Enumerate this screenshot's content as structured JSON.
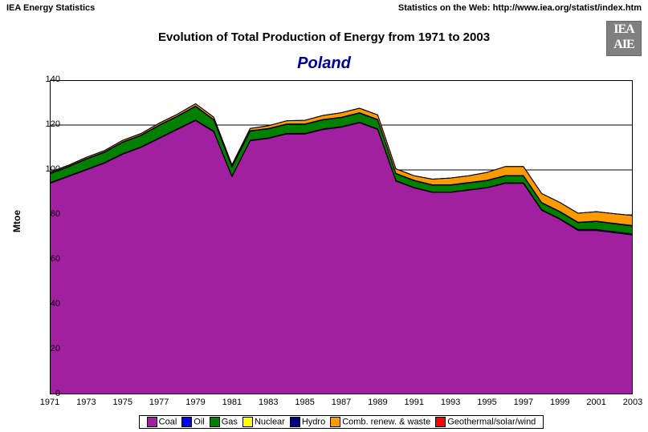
{
  "header": {
    "left": "IEA Energy Statistics",
    "right": "Statistics on the Web: http://www.iea.org/statist/index.htm"
  },
  "logo": {
    "top": "IEA",
    "bottom": "AIE"
  },
  "chart": {
    "type": "area",
    "title": "Evolution of Total Production of Energy from 1971 to 2003",
    "subtitle": "Poland",
    "subtitle_color": "#000099",
    "ylabel": "Mtoe",
    "background_color": "#ffffff",
    "grid_color": "#000000",
    "axis_color": "#000000",
    "xlim": [
      1971,
      2003
    ],
    "ylim": [
      0,
      140
    ],
    "xtick_step": 2,
    "ytick_step": 20,
    "axis_fontsize": 11,
    "title_fontsize": 15,
    "subtitle_fontsize": 20,
    "label_fontsize": 12,
    "series_order": [
      "coal",
      "oil",
      "gas",
      "nuclear",
      "hydro",
      "comb_renew",
      "geo_solar_wind"
    ],
    "series": {
      "coal": {
        "label": "Coal",
        "color": "#a020a0"
      },
      "oil": {
        "label": "Oil",
        "color": "#0000ff"
      },
      "gas": {
        "label": "Gas",
        "color": "#008000"
      },
      "nuclear": {
        "label": "Nuclear",
        "color": "#ffff00"
      },
      "hydro": {
        "label": "Hydro",
        "color": "#000080"
      },
      "comb_renew": {
        "label": "Comb. renew. & waste",
        "color": "#ff9900"
      },
      "geo_solar_wind": {
        "label": "Geothermal/solar/wind",
        "color": "#ff0000"
      }
    },
    "years": [
      1971,
      1972,
      1973,
      1974,
      1975,
      1976,
      1977,
      1978,
      1979,
      1980,
      1981,
      1982,
      1983,
      1984,
      1985,
      1986,
      1987,
      1988,
      1989,
      1990,
      1991,
      1992,
      1993,
      1994,
      1995,
      1996,
      1997,
      1998,
      1999,
      2000,
      2001,
      2002,
      2003
    ],
    "values": {
      "coal": [
        94,
        97,
        100,
        103,
        107,
        110,
        114,
        118,
        122,
        117,
        97,
        113,
        114,
        116,
        116,
        118,
        119,
        121,
        118,
        95,
        92,
        90,
        90,
        91,
        92,
        94,
        94,
        82,
        78,
        73,
        73,
        72,
        71
      ],
      "oil": [
        0.3,
        0.3,
        0.3,
        0.3,
        0.3,
        0.3,
        0.3,
        0.3,
        0.3,
        0.3,
        0.3,
        0.3,
        0.3,
        0.3,
        0.3,
        0.3,
        0.3,
        0.3,
        0.3,
        0.3,
        0.2,
        0.2,
        0.2,
        0.2,
        0.2,
        0.3,
        0.3,
        0.3,
        0.3,
        0.5,
        0.5,
        0.5,
        0.5
      ],
      "gas": [
        4,
        4,
        4.5,
        4.5,
        5,
        5,
        5.5,
        5.5,
        6,
        5,
        4,
        4,
        4,
        4,
        4,
        4,
        4,
        4,
        4,
        3,
        3,
        3,
        3,
        3,
        3,
        3,
        3,
        3,
        3,
        3,
        3.5,
        3.5,
        3.5
      ],
      "nuclear": [
        0,
        0,
        0,
        0,
        0,
        0,
        0,
        0,
        0,
        0,
        0,
        0,
        0,
        0,
        0,
        0,
        0,
        0,
        0,
        0,
        0,
        0,
        0,
        0,
        0,
        0,
        0,
        0,
        0,
        0,
        0,
        0,
        0
      ],
      "hydro": [
        0.2,
        0.2,
        0.2,
        0.2,
        0.2,
        0.2,
        0.2,
        0.2,
        0.2,
        0.2,
        0.2,
        0.2,
        0.2,
        0.2,
        0.2,
        0.2,
        0.2,
        0.2,
        0.2,
        0.2,
        0.2,
        0.2,
        0.2,
        0.2,
        0.2,
        0.2,
        0.2,
        0.2,
        0.2,
        0.2,
        0.2,
        0.2,
        0.2
      ],
      "comb_renew": [
        0.5,
        0.5,
        0.6,
        0.6,
        0.7,
        0.7,
        0.8,
        0.8,
        1.0,
        1.0,
        0.8,
        1.0,
        1.2,
        1.4,
        1.6,
        1.8,
        2.0,
        2.0,
        2.0,
        2.0,
        2.0,
        2.5,
        3.0,
        3.0,
        3.5,
        4.0,
        4.0,
        4.0,
        4.0,
        4.0,
        4.2,
        4.3,
        4.5
      ],
      "geo_solar_wind": [
        0,
        0,
        0,
        0,
        0,
        0,
        0,
        0,
        0,
        0,
        0,
        0,
        0,
        0,
        0,
        0,
        0,
        0,
        0,
        0,
        0,
        0,
        0,
        0,
        0,
        0,
        0,
        0,
        0,
        0,
        0,
        0,
        0
      ]
    },
    "area_border_color": "#000000",
    "area_border_width": 1
  }
}
